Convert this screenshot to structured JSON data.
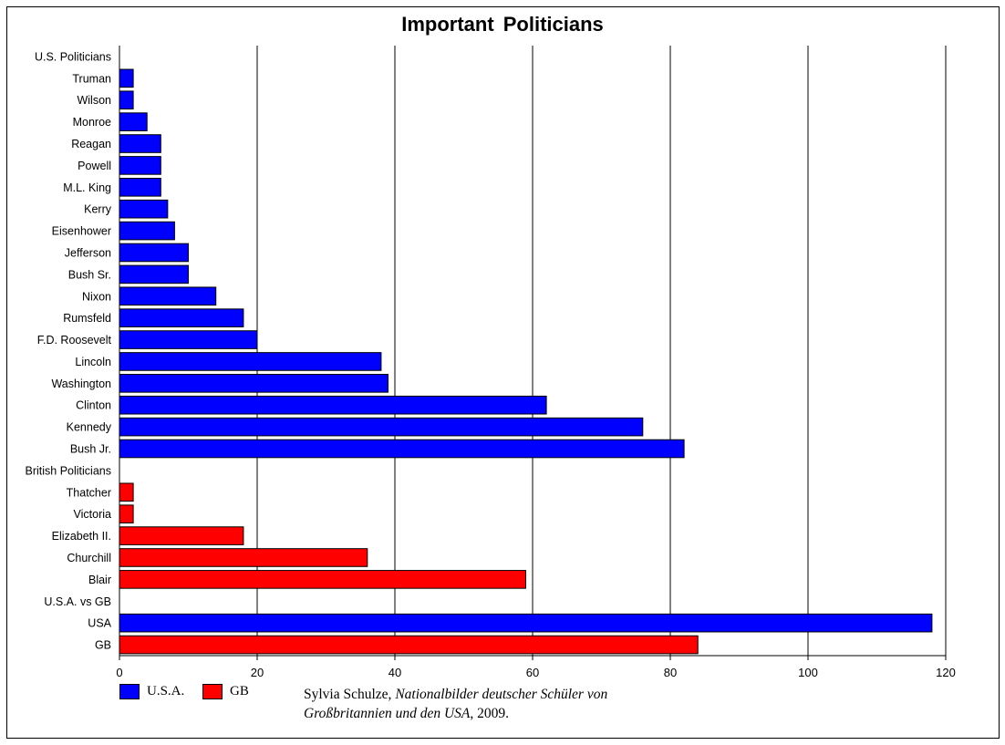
{
  "chart_data": {
    "type": "bar",
    "orientation": "horizontal",
    "title": "Important  Politicians",
    "xlim": [
      0,
      120
    ],
    "xticks": [
      0,
      20,
      40,
      60,
      80,
      100,
      120
    ],
    "grid": "vertical",
    "categories": [
      "U.S. Politicians",
      "Truman",
      "Wilson",
      "Monroe",
      "Reagan",
      "Powell",
      "M.L. King",
      "Kerry",
      "Eisenhower",
      "Jefferson",
      "Bush Sr.",
      "Nixon",
      "Rumsfeld",
      "F.D. Roosevelt",
      "Lincoln",
      "Washington",
      "Clinton",
      "Kennedy",
      "Bush Jr.",
      "British Politicians",
      "Thatcher",
      "Victoria",
      "Elizabeth II.",
      "Churchill",
      "Blair",
      "U.S.A. vs GB",
      "USA",
      "GB"
    ],
    "values": [
      null,
      2,
      2,
      4,
      6,
      6,
      6,
      7,
      8,
      10,
      10,
      14,
      18,
      20,
      38,
      39,
      62,
      76,
      82,
      null,
      2,
      2,
      18,
      36,
      59,
      null,
      118,
      84
    ],
    "groups": [
      "header",
      "U.S.A.",
      "U.S.A.",
      "U.S.A.",
      "U.S.A.",
      "U.S.A.",
      "U.S.A.",
      "U.S.A.",
      "U.S.A.",
      "U.S.A.",
      "U.S.A.",
      "U.S.A.",
      "U.S.A.",
      "U.S.A.",
      "U.S.A.",
      "U.S.A.",
      "U.S.A.",
      "U.S.A.",
      "U.S.A.",
      "header",
      "GB",
      "GB",
      "GB",
      "GB",
      "GB",
      "header",
      "U.S.A.",
      "GB"
    ],
    "legend": [
      {
        "name": "U.S.A.",
        "color": "#0000ff"
      },
      {
        "name": "GB",
        "color": "#ff0000"
      }
    ],
    "legend_placement": "bottom-left"
  },
  "source": {
    "author": "Sylvia Schulze, ",
    "work": "Nationalbilder deutscher Schüler von Großbritannien und den USA",
    "year": ", 2009."
  }
}
